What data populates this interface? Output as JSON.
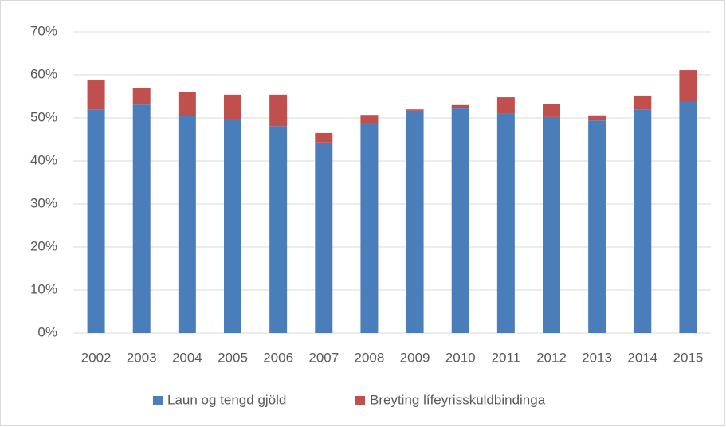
{
  "chart_data": {
    "type": "stacked_bar",
    "categories": [
      "2002",
      "2003",
      "2004",
      "2005",
      "2006",
      "2007",
      "2008",
      "2009",
      "2010",
      "2011",
      "2012",
      "2013",
      "2014",
      "2015"
    ],
    "series": [
      {
        "name": "Laun og tengd gjöld",
        "color": "#4a7ebb",
        "values": [
          51.9,
          53.1,
          50.4,
          49.8,
          48.1,
          44.3,
          48.7,
          51.7,
          52.2,
          51.1,
          50.2,
          49.4,
          52.0,
          53.7
        ]
      },
      {
        "name": "Breyting lífeyrisskuldbindinga",
        "color": "#c0504d",
        "values": [
          6.8,
          3.8,
          5.7,
          5.6,
          7.3,
          2.2,
          2.0,
          0.3,
          0.8,
          3.7,
          3.1,
          1.2,
          3.2,
          7.4
        ]
      }
    ],
    "ylim": [
      0,
      70
    ],
    "yticks": [
      {
        "value": 0,
        "label": "0%"
      },
      {
        "value": 10,
        "label": "10%"
      },
      {
        "value": 20,
        "label": "20%"
      },
      {
        "value": 30,
        "label": "30%"
      },
      {
        "value": 40,
        "label": "40%"
      },
      {
        "value": 50,
        "label": "50%"
      },
      {
        "value": 60,
        "label": "60%"
      },
      {
        "value": 70,
        "label": "70%"
      }
    ],
    "grid": true,
    "legend": "bottom"
  }
}
